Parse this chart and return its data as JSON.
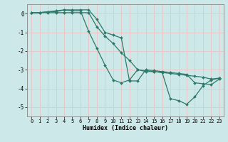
{
  "xlabel": "Humidex (Indice chaleur)",
  "bg_color": "#cce8e8",
  "grid_color": "#e8c8c8",
  "line_color": "#2d7a6a",
  "xlim": [
    -0.5,
    23.5
  ],
  "ylim": [
    -5.5,
    0.5
  ],
  "yticks": [
    0,
    -1,
    -2,
    -3,
    -4,
    -5
  ],
  "xticks": [
    0,
    1,
    2,
    3,
    4,
    5,
    6,
    7,
    8,
    9,
    10,
    11,
    12,
    13,
    14,
    15,
    16,
    17,
    18,
    19,
    20,
    21,
    22,
    23
  ],
  "series": [
    [
      0.05,
      0.05,
      0.05,
      0.05,
      0.05,
      0.05,
      0.05,
      0.05,
      -0.7,
      -1.2,
      -1.6,
      -2.1,
      -2.5,
      -3.0,
      -3.1,
      -3.1,
      -3.15,
      -3.2,
      -3.25,
      -3.3,
      -3.35,
      -3.4,
      -3.5,
      -3.45
    ],
    [
      0.05,
      0.05,
      0.1,
      0.1,
      0.2,
      0.2,
      0.2,
      0.2,
      -0.3,
      -1.0,
      -1.15,
      -1.3,
      -3.6,
      -3.6,
      -3.0,
      -3.05,
      -3.1,
      -3.15,
      -3.2,
      -3.25,
      -3.7,
      -3.75,
      -3.8,
      -3.5
    ],
    [
      0.05,
      0.05,
      0.1,
      0.15,
      0.2,
      0.15,
      0.15,
      -0.95,
      -1.85,
      -2.75,
      -3.55,
      -3.7,
      -3.55,
      -3.0,
      -3.05,
      -3.1,
      -3.15,
      -4.55,
      -4.65,
      -4.85,
      -4.45,
      -3.85,
      -3.55,
      -3.45
    ]
  ]
}
